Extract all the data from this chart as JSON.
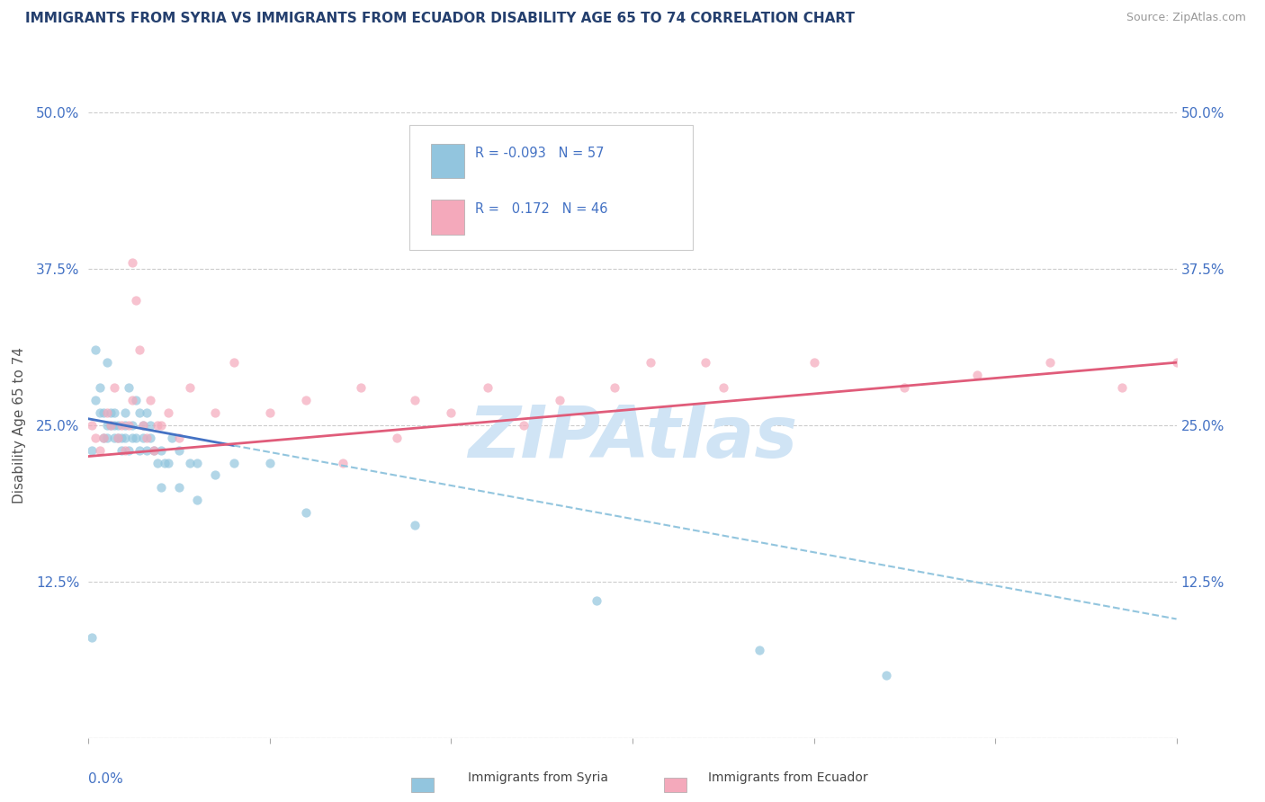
{
  "title": "IMMIGRANTS FROM SYRIA VS IMMIGRANTS FROM ECUADOR DISABILITY AGE 65 TO 74 CORRELATION CHART",
  "source": "Source: ZipAtlas.com",
  "xmin": 0.0,
  "xmax": 0.3,
  "ymin": 0.0,
  "ymax": 0.5,
  "yticks": [
    0.0,
    0.125,
    0.25,
    0.375,
    0.5
  ],
  "ytick_labels": [
    "",
    "12.5%",
    "25.0%",
    "37.5%",
    "50.0%"
  ],
  "xticks": [
    0.0,
    0.05,
    0.1,
    0.15,
    0.2,
    0.25,
    0.3
  ],
  "watermark": "ZIPAtlas",
  "color_syria": "#92c5de",
  "color_ecuador": "#f4a9bb",
  "color_syria_line_solid": "#4472c4",
  "color_syria_line_dash": "#92c5de",
  "color_ecuador_line": "#e05c7a",
  "color_title": "#243f6e",
  "color_axis_labels": "#4472c4",
  "color_watermark": "#c8d8f0",
  "syria_x": [
    0.001,
    0.001,
    0.002,
    0.002,
    0.003,
    0.003,
    0.004,
    0.004,
    0.005,
    0.005,
    0.005,
    0.006,
    0.006,
    0.007,
    0.007,
    0.007,
    0.008,
    0.008,
    0.009,
    0.009,
    0.01,
    0.01,
    0.01,
    0.011,
    0.011,
    0.012,
    0.012,
    0.013,
    0.013,
    0.014,
    0.014,
    0.015,
    0.015,
    0.016,
    0.016,
    0.017,
    0.017,
    0.018,
    0.019,
    0.02,
    0.021,
    0.022,
    0.023,
    0.025,
    0.028,
    0.03,
    0.035,
    0.04,
    0.05,
    0.02,
    0.025,
    0.03,
    0.06,
    0.09,
    0.14,
    0.185,
    0.22
  ],
  "syria_y": [
    0.23,
    0.08,
    0.31,
    0.27,
    0.28,
    0.26,
    0.26,
    0.24,
    0.25,
    0.3,
    0.24,
    0.26,
    0.25,
    0.24,
    0.26,
    0.25,
    0.24,
    0.25,
    0.23,
    0.24,
    0.24,
    0.26,
    0.25,
    0.23,
    0.28,
    0.24,
    0.25,
    0.24,
    0.27,
    0.23,
    0.26,
    0.25,
    0.24,
    0.23,
    0.26,
    0.25,
    0.24,
    0.23,
    0.22,
    0.23,
    0.22,
    0.22,
    0.24,
    0.23,
    0.22,
    0.22,
    0.21,
    0.22,
    0.22,
    0.2,
    0.2,
    0.19,
    0.18,
    0.17,
    0.11,
    0.07,
    0.05
  ],
  "ecuador_x": [
    0.001,
    0.002,
    0.003,
    0.004,
    0.005,
    0.006,
    0.007,
    0.008,
    0.009,
    0.01,
    0.011,
    0.012,
    0.012,
    0.013,
    0.014,
    0.015,
    0.016,
    0.017,
    0.018,
    0.019,
    0.02,
    0.022,
    0.025,
    0.028,
    0.035,
    0.04,
    0.05,
    0.06,
    0.075,
    0.09,
    0.11,
    0.13,
    0.155,
    0.175,
    0.2,
    0.225,
    0.245,
    0.265,
    0.285,
    0.3,
    0.07,
    0.085,
    0.1,
    0.12,
    0.145,
    0.17
  ],
  "ecuador_y": [
    0.25,
    0.24,
    0.23,
    0.24,
    0.26,
    0.25,
    0.28,
    0.24,
    0.25,
    0.23,
    0.25,
    0.27,
    0.38,
    0.35,
    0.31,
    0.25,
    0.24,
    0.27,
    0.23,
    0.25,
    0.25,
    0.26,
    0.24,
    0.28,
    0.26,
    0.3,
    0.26,
    0.27,
    0.28,
    0.27,
    0.28,
    0.27,
    0.3,
    0.28,
    0.3,
    0.28,
    0.29,
    0.3,
    0.28,
    0.3,
    0.22,
    0.24,
    0.26,
    0.25,
    0.28,
    0.3
  ],
  "syria_trendline_x": [
    0.0,
    0.3
  ],
  "syria_trendline_y_start": 0.255,
  "syria_trendline_y_end": 0.095,
  "ecuador_trendline_x": [
    0.0,
    0.3
  ],
  "ecuador_trendline_y_start": 0.225,
  "ecuador_trendline_y_end": 0.3
}
